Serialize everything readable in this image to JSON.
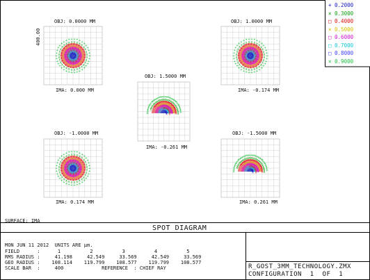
{
  "legend": {
    "wavelengths": [
      {
        "label": "0.2000",
        "color": "#1414c8",
        "glyph": "+"
      },
      {
        "label": "0.3000",
        "color": "#10a010",
        "glyph": "×"
      },
      {
        "label": "0.4000",
        "color": "#e01010",
        "glyph": "□"
      },
      {
        "label": "0.5000",
        "color": "#d8c000",
        "glyph": "×"
      },
      {
        "label": "0.6000",
        "color": "#d010d0",
        "glyph": "□"
      },
      {
        "label": "0.7000",
        "color": "#10c8d8",
        "glyph": "□"
      },
      {
        "label": "0.8000",
        "color": "#4040ff",
        "glyph": "□"
      },
      {
        "label": "0.9000",
        "color": "#20c040",
        "glyph": "×"
      }
    ]
  },
  "fields": [
    {
      "obj": "OBJ: 0.0000 MM",
      "ima": "IMA: 0.000 MM",
      "shape": "full",
      "scale_label": "400.00"
    },
    {
      "obj": "OBJ: 1.0000 MM",
      "ima": "IMA: -0.174 MM",
      "shape": "full"
    },
    {
      "obj": "OBJ: 1.5000 MM",
      "ima": "IMA: -0.261 MM",
      "shape": "half"
    },
    {
      "obj": "OBJ: -1.0000 MM",
      "ima": "IMA: 0.174 MM",
      "shape": "full"
    },
    {
      "obj": "OBJ: -1.5000 MM",
      "ima": "IMA: 0.261 MM",
      "shape": "half"
    }
  ],
  "surface": "SURFACE: IMA",
  "title": "SPOT DIAGRAM",
  "info": {
    "date_units": "MON JUN 11 2012  UNITS ARE µm.",
    "field_row": "FIELD      :      1          2          3          4          5",
    "rms_row": "RMS RADIUS :     41.198     42.549     33.569     42.549     33.569",
    "geo_row": "GEO RADIUS :    108.114    119.799    108.577    119.799    108.577",
    "scale_row": "SCALE BAR  :     400             REFERENCE  : CHIEF RAY"
  },
  "file": {
    "name": "R_GOST_3MM_TECHNOLOGY.ZMX",
    "config": "CONFIGURATION  1  OF  1"
  }
}
